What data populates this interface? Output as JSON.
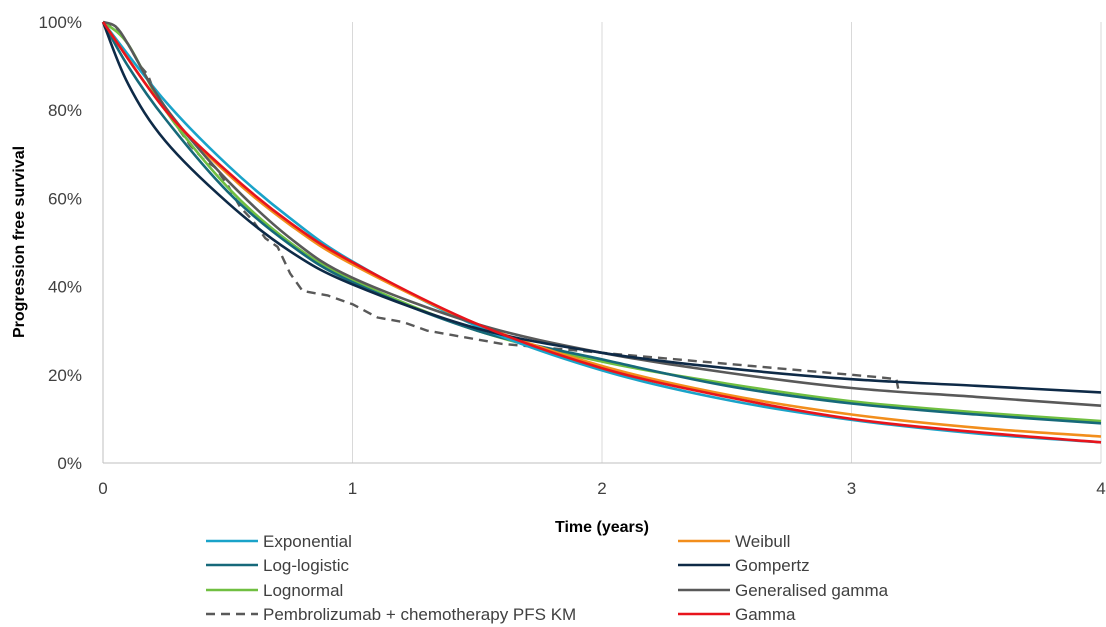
{
  "chart_data": {
    "type": "line",
    "xlabel": "Time (years)",
    "ylabel": "Progression free survival",
    "xlim": [
      0,
      4
    ],
    "ylim": [
      0,
      1
    ],
    "x_ticks": [
      0,
      1,
      2,
      3,
      4
    ],
    "x_tick_labels": [
      "0",
      "1",
      "2",
      "3",
      "4"
    ],
    "y_ticks": [
      0,
      0.2,
      0.4,
      0.6,
      0.8,
      1.0
    ],
    "y_tick_labels": [
      "0%",
      "20%",
      "40%",
      "60%",
      "80%",
      "100%"
    ],
    "grid": "vertical",
    "legend_position": "bottom",
    "series": [
      {
        "name": "Exponential",
        "color": "#1aa3c9",
        "dash": "solid",
        "x": [
          0,
          0.25,
          0.5,
          0.75,
          1,
          1.5,
          2,
          2.5,
          3,
          3.5,
          4
        ],
        "y": [
          1.0,
          0.82,
          0.675,
          0.555,
          0.457,
          0.31,
          0.21,
          0.143,
          0.098,
          0.067,
          0.047
        ]
      },
      {
        "name": "Log-logistic",
        "color": "#16697a",
        "dash": "solid",
        "x": [
          0,
          0.1,
          0.25,
          0.5,
          0.75,
          1,
          1.5,
          2,
          2.5,
          3,
          3.5,
          4
        ],
        "y": [
          1.0,
          0.9,
          0.78,
          0.615,
          0.495,
          0.41,
          0.3,
          0.235,
          0.175,
          0.135,
          0.11,
          0.09
        ]
      },
      {
        "name": "Lognormal",
        "color": "#70bf41",
        "dash": "solid",
        "x": [
          0,
          0.1,
          0.25,
          0.5,
          0.75,
          1,
          1.5,
          2,
          2.5,
          3,
          3.5,
          4
        ],
        "y": [
          1.0,
          0.95,
          0.8,
          0.625,
          0.5,
          0.415,
          0.3,
          0.23,
          0.18,
          0.14,
          0.115,
          0.095
        ]
      },
      {
        "name": "Pembrolizumab + chemotherapy PFS KM",
        "color": "#595959",
        "dash": "dashed",
        "x": [
          0,
          0.05,
          0.1,
          0.15,
          0.18,
          0.2,
          0.25,
          0.3,
          0.35,
          0.4,
          0.45,
          0.5,
          0.55,
          0.6,
          0.65,
          0.7,
          0.75,
          0.8,
          0.9,
          1.0,
          1.1,
          1.2,
          1.3,
          1.4,
          1.5,
          1.6,
          1.7,
          1.8,
          1.9,
          2.0,
          2.2,
          2.4,
          2.6,
          2.8,
          3.0,
          3.1,
          3.18,
          3.19
        ],
        "y": [
          1.0,
          0.99,
          0.95,
          0.9,
          0.88,
          0.85,
          0.8,
          0.76,
          0.72,
          0.69,
          0.67,
          0.63,
          0.58,
          0.55,
          0.51,
          0.49,
          0.43,
          0.39,
          0.38,
          0.36,
          0.33,
          0.32,
          0.3,
          0.29,
          0.28,
          0.27,
          0.265,
          0.26,
          0.255,
          0.25,
          0.24,
          0.23,
          0.22,
          0.21,
          0.2,
          0.195,
          0.19,
          0.16
        ]
      },
      {
        "name": "Weibull",
        "color": "#f28e1c",
        "dash": "solid",
        "x": [
          0,
          0.25,
          0.5,
          0.75,
          1,
          1.5,
          2,
          2.5,
          3,
          3.5,
          4
        ],
        "y": [
          1.0,
          0.8,
          0.655,
          0.54,
          0.45,
          0.315,
          0.22,
          0.155,
          0.11,
          0.08,
          0.06
        ]
      },
      {
        "name": "Gompertz",
        "color": "#0e2a47",
        "dash": "solid",
        "x": [
          0,
          0.1,
          0.25,
          0.5,
          0.75,
          1,
          1.5,
          2,
          2.5,
          3,
          3.5,
          4
        ],
        "y": [
          1.0,
          0.86,
          0.73,
          0.59,
          0.48,
          0.405,
          0.305,
          0.25,
          0.215,
          0.19,
          0.175,
          0.16
        ]
      },
      {
        "name": "Generalised gamma",
        "color": "#595959",
        "dash": "solid",
        "x": [
          0,
          0.05,
          0.1,
          0.2,
          0.3,
          0.5,
          0.75,
          1,
          1.5,
          2,
          2.5,
          3,
          3.5,
          4
        ],
        "y": [
          1.0,
          0.99,
          0.95,
          0.85,
          0.77,
          0.64,
          0.51,
          0.42,
          0.315,
          0.25,
          0.205,
          0.17,
          0.15,
          0.13
        ]
      },
      {
        "name": "Gamma",
        "color": "#e8141c",
        "dash": "solid",
        "x": [
          0,
          0.25,
          0.5,
          0.75,
          1,
          1.5,
          2,
          2.5,
          3,
          3.5,
          4
        ],
        "y": [
          1.0,
          0.8,
          0.66,
          0.545,
          0.455,
          0.315,
          0.215,
          0.15,
          0.1,
          0.07,
          0.047
        ]
      }
    ]
  },
  "legend_layout": {
    "columns": [
      [
        "Exponential",
        "Log-logistic",
        "Lognormal",
        "Pembrolizumab + chemotherapy PFS KM"
      ],
      [
        "Weibull",
        "Gompertz",
        "Generalised gamma",
        "Gamma"
      ]
    ]
  }
}
